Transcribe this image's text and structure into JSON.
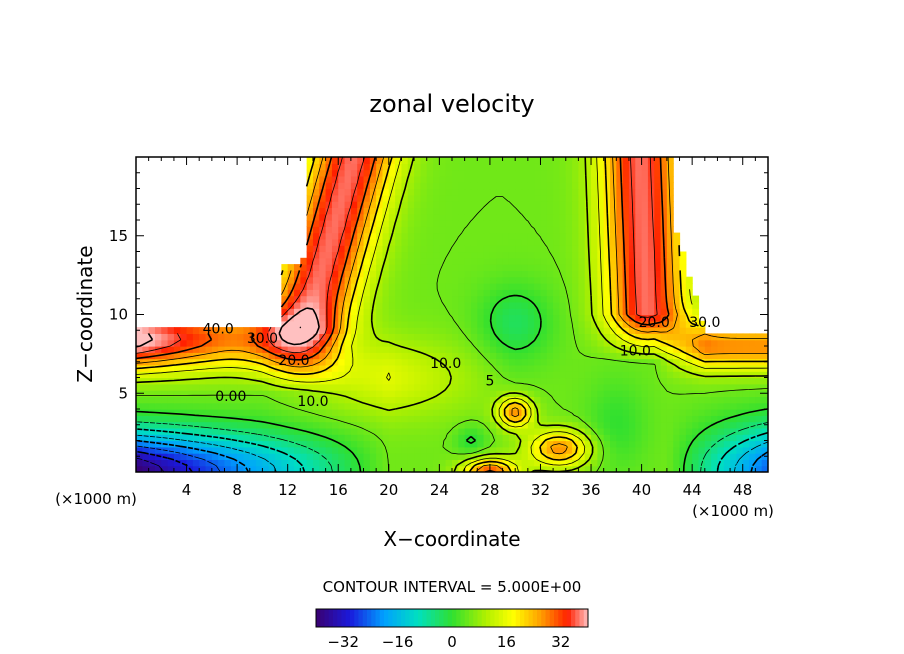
{
  "chart_data": {
    "type": "heatmap",
    "title": "zonal velocity",
    "xlabel": "X−coordinate",
    "ylabel": "Z−coordinate",
    "x_unit_left": "(×1000 m)",
    "x_unit_right": "(×1000 m)",
    "xlim": [
      0,
      50
    ],
    "ylim": [
      0,
      20
    ],
    "x_ticks": [
      4,
      8,
      12,
      16,
      20,
      24,
      28,
      32,
      36,
      40,
      44,
      48
    ],
    "y_ticks": [
      5,
      10,
      15
    ],
    "contour_interval_label": "CONTOUR INTERVAL = 5.000E+00",
    "contour_interval": 5.0,
    "colorbar": {
      "min": -40,
      "max": 40,
      "tick_values": [
        -32,
        -16,
        0,
        16,
        32
      ],
      "tick_labels": [
        "−32",
        "−16",
        "0",
        "16",
        "32"
      ]
    },
    "contour_labels": [
      {
        "text": "40.0",
        "x": 6.5,
        "z": 8.8,
        "value": 40
      },
      {
        "text": "30.0",
        "x": 10.0,
        "z": 8.2,
        "value": 30
      },
      {
        "text": "20.0",
        "x": 12.5,
        "z": 6.8,
        "value": 20
      },
      {
        "text": "0.00",
        "x": 7.5,
        "z": 4.5,
        "value": 0
      },
      {
        "text": "10.0",
        "x": 14.0,
        "z": 4.2,
        "value": 10
      },
      {
        "text": "10.0",
        "x": 24.5,
        "z": 6.6,
        "value": 10
      },
      {
        "text": "5",
        "x": 28.0,
        "z": 5.5,
        "value": 5
      },
      {
        "text": "20.0",
        "x": 41.0,
        "z": 9.2,
        "value": 20
      },
      {
        "text": "30.0",
        "x": 45.0,
        "z": 9.2,
        "value": 30
      },
      {
        "text": "10.0",
        "x": 39.5,
        "z": 7.4,
        "value": 10
      }
    ],
    "field_description_samples": [
      {
        "x": 4,
        "z": 0.5,
        "value": -38
      },
      {
        "x": 10,
        "z": 2,
        "value": -20
      },
      {
        "x": 5,
        "z": 6,
        "value": 15
      },
      {
        "x": 8,
        "z": 9,
        "value": 40
      },
      {
        "x": 16,
        "z": 14,
        "value": 32
      },
      {
        "x": 30,
        "z": 10,
        "value": 3
      },
      {
        "x": 30,
        "z": 3.5,
        "value": 28
      },
      {
        "x": 33,
        "z": 1.5,
        "value": 28
      },
      {
        "x": 28,
        "z": 0.3,
        "value": 34
      },
      {
        "x": 42,
        "z": 14,
        "value": 34
      },
      {
        "x": 47,
        "z": 2.5,
        "value": -18
      }
    ]
  }
}
